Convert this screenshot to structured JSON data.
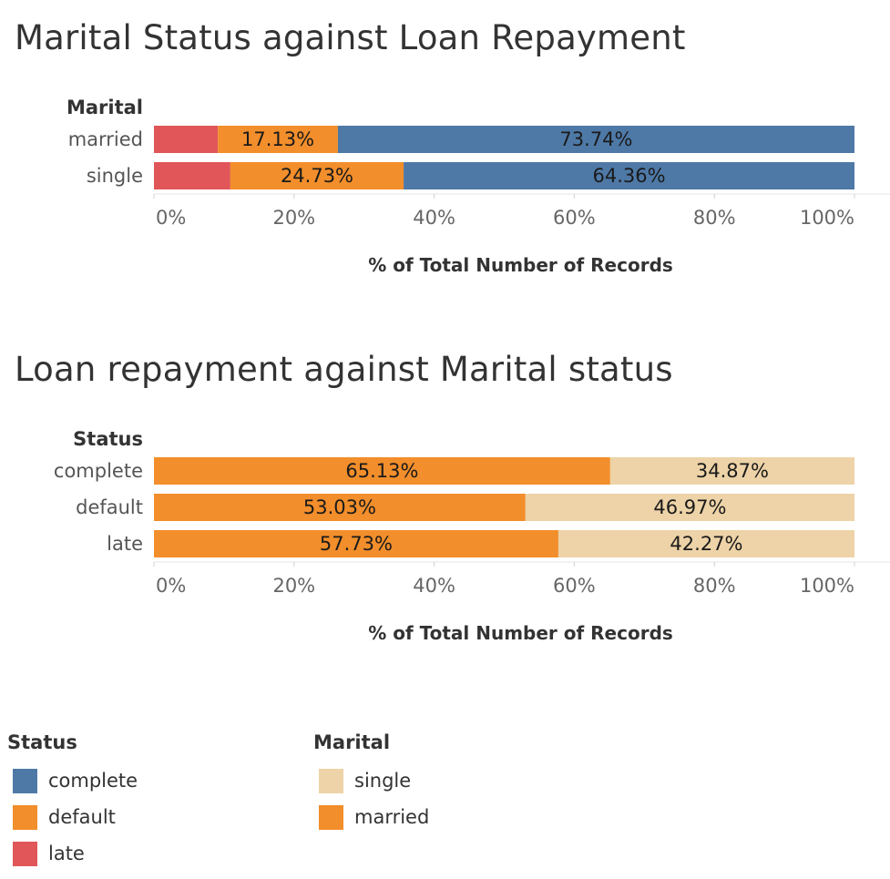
{
  "colors": {
    "complete": "#4e79a7",
    "default": "#f28e2b",
    "late": "#e15759",
    "single": "#edd3a7",
    "married": "#f28e2b"
  },
  "chart_data": [
    {
      "type": "bar",
      "orientation": "horizontal",
      "stacked": true,
      "title": "Marital Status against Loan Repayment",
      "row_header": "Marital",
      "categories": [
        "married",
        "single"
      ],
      "series": [
        {
          "name": "late",
          "values": [
            9.13,
            10.91
          ]
        },
        {
          "name": "default",
          "values": [
            17.13,
            24.73
          ]
        },
        {
          "name": "complete",
          "values": [
            73.74,
            64.36
          ]
        }
      ],
      "xlabel": "% of Total Number of Records",
      "xlim": [
        0,
        100
      ],
      "xticks": [
        "0%",
        "20%",
        "40%",
        "60%",
        "80%",
        "100%"
      ],
      "data_labels": [
        [
          "",
          "17.13%",
          "73.74%"
        ],
        [
          "",
          "24.73%",
          "64.36%"
        ]
      ],
      "grid": false
    },
    {
      "type": "bar",
      "orientation": "horizontal",
      "stacked": true,
      "title": "Loan repayment against Marital status",
      "row_header": "Status",
      "categories": [
        "complete",
        "default",
        "late"
      ],
      "series": [
        {
          "name": "married",
          "values": [
            65.13,
            53.03,
            57.73
          ]
        },
        {
          "name": "single",
          "values": [
            34.87,
            46.97,
            42.27
          ]
        }
      ],
      "xlabel": "% of Total Number of Records",
      "xlim": [
        0,
        100
      ],
      "xticks": [
        "0%",
        "20%",
        "40%",
        "60%",
        "80%",
        "100%"
      ],
      "data_labels": [
        [
          "65.13%",
          "34.87%"
        ],
        [
          "53.03%",
          "46.97%"
        ],
        [
          "57.73%",
          "42.27%"
        ]
      ],
      "grid": false
    }
  ],
  "legends": [
    {
      "title": "Status",
      "items": [
        {
          "label": "complete",
          "color": "#4e79a7"
        },
        {
          "label": "default",
          "color": "#f28e2b"
        },
        {
          "label": "late",
          "color": "#e15759"
        }
      ]
    },
    {
      "title": "Marital",
      "items": [
        {
          "label": "single",
          "color": "#edd3a7"
        },
        {
          "label": "married",
          "color": "#f28e2b"
        }
      ]
    }
  ]
}
